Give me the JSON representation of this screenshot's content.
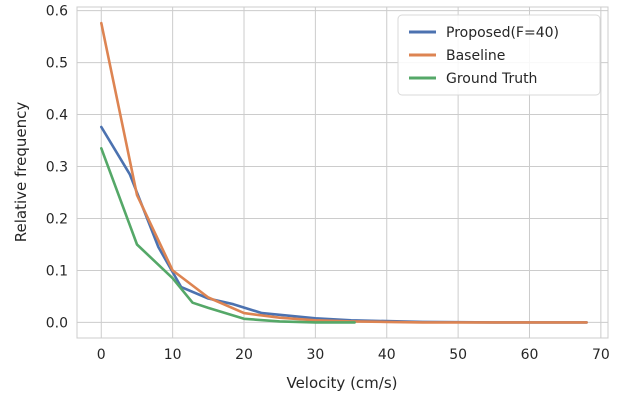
{
  "chart_data": {
    "type": "line",
    "title": "",
    "xlabel": "Velocity (cm/s)",
    "ylabel": "Relative frequency",
    "xlim": [
      -3.4,
      71.0
    ],
    "ylim": [
      -0.03,
      0.607
    ],
    "xticks": [
      0,
      10,
      20,
      30,
      40,
      50,
      60,
      70
    ],
    "yticks": [
      0.0,
      0.1,
      0.2,
      0.3,
      0.4,
      0.5,
      0.6
    ],
    "xtick_labels": [
      "0",
      "10",
      "20",
      "30",
      "40",
      "50",
      "60",
      "70"
    ],
    "ytick_labels": [
      "0.0",
      "0.1",
      "0.2",
      "0.3",
      "0.4",
      "0.5",
      "0.6"
    ],
    "grid": true,
    "legend_position": "upper-right",
    "series": [
      {
        "name": "Proposed(F=40)",
        "color": "#4c72b0",
        "x": [
          0,
          4,
          8,
          11.2,
          15,
          18.5,
          22.5,
          30,
          35,
          45,
          55,
          68
        ],
        "y": [
          0.376,
          0.285,
          0.145,
          0.068,
          0.046,
          0.035,
          0.018,
          0.008,
          0.004,
          0.001,
          0.0,
          0.0
        ]
      },
      {
        "name": "Baseline",
        "color": "#dd8452",
        "x": [
          0,
          5,
          10,
          15,
          20,
          25,
          30,
          35,
          40,
          45,
          55,
          68
        ],
        "y": [
          0.576,
          0.245,
          0.1,
          0.048,
          0.018,
          0.009,
          0.004,
          0.002,
          0.001,
          0.0,
          0.0,
          0.0
        ]
      },
      {
        "name": "Ground Truth",
        "color": "#55a868",
        "x": [
          0,
          5,
          10,
          12.8,
          15,
          20,
          25,
          30,
          35.5
        ],
        "y": [
          0.335,
          0.15,
          0.085,
          0.038,
          0.028,
          0.007,
          0.002,
          0.0,
          0.0
        ]
      }
    ]
  }
}
